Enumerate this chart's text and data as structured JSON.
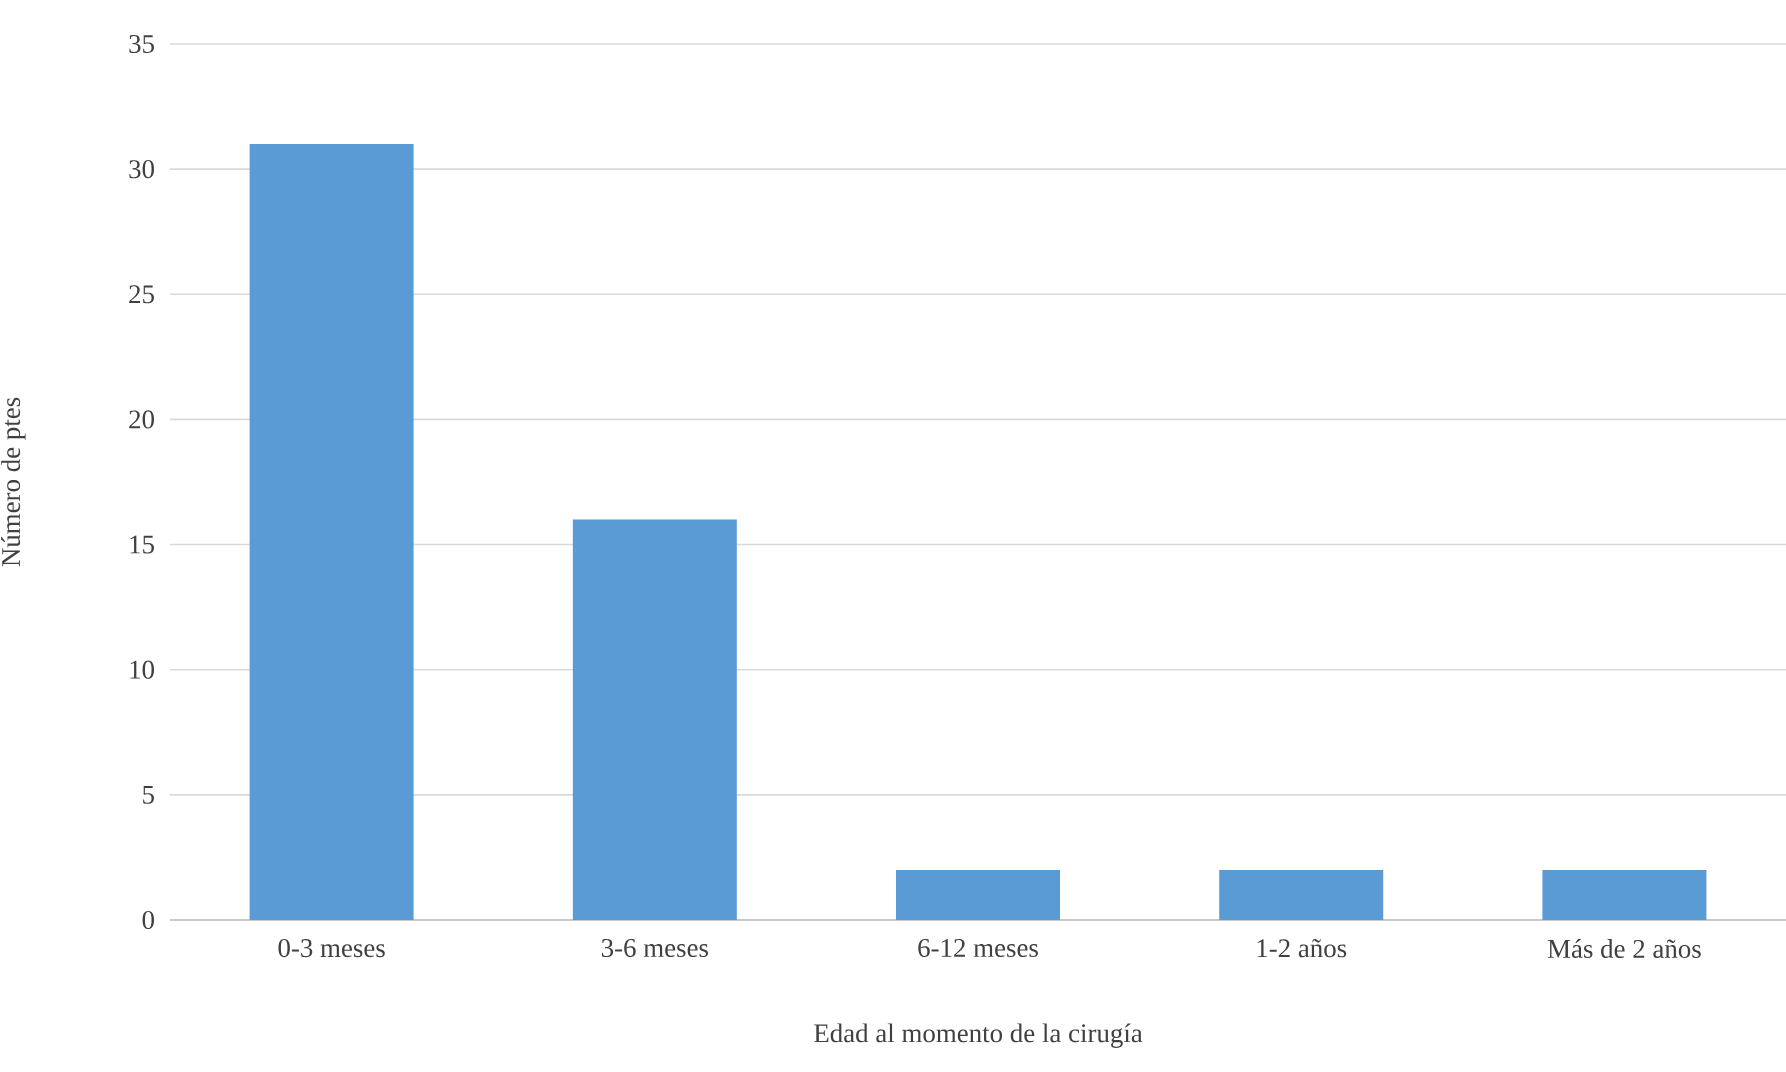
{
  "chart_data": {
    "type": "bar",
    "xlabel": "Edad al momento de la cirugía",
    "ylabel": "Número de ptes",
    "categories": [
      "0-3 meses",
      "3-6 meses",
      "6-12 meses",
      "1-2 años",
      "Más de 2 años"
    ],
    "values": [
      31,
      16,
      2,
      2,
      2
    ],
    "color": "#5b9bd5",
    "ylim": [
      0,
      35
    ],
    "yticks": [
      0,
      5,
      10,
      15,
      20,
      25,
      30,
      35
    ],
    "grid": "y"
  }
}
